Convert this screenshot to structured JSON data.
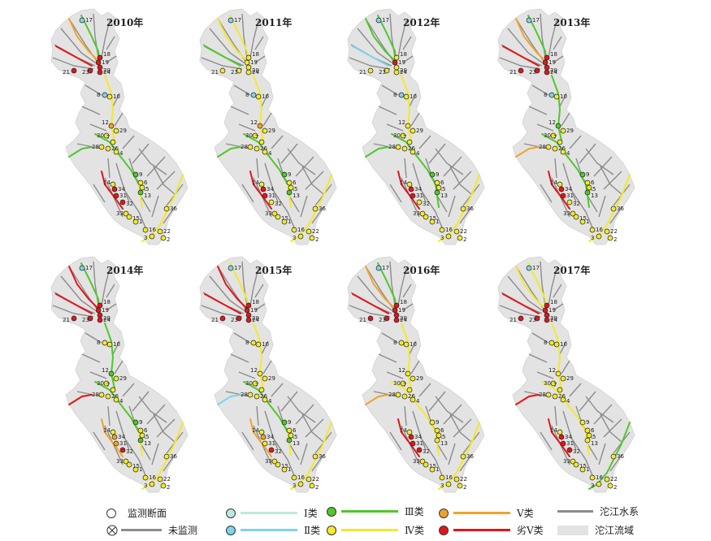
{
  "years": [
    "2010年",
    "2011年",
    "2012年",
    "2013年",
    "2014年",
    "2015年",
    "2016年",
    "2017年"
  ],
  "station_labels": {
    "s17": "17",
    "s18": "18",
    "s19": "19",
    "s20": "20",
    "s21": "21",
    "s23": "23",
    "s24": "24",
    "s8": "8",
    "s10": "10",
    "s12": "12",
    "s29": "29",
    "s30": "30",
    "s7": "7",
    "s28": "28",
    "s26": "26",
    "s4": "4",
    "s9": "9",
    "s6": "6",
    "s5": "5",
    "s13": "13",
    "s14": "14",
    "s31": "31",
    "s32": "32",
    "s34": "34",
    "s33": "33",
    "s15": "15",
    "s36": "36",
    "s16": "16",
    "s22": "22",
    "s2": "2",
    "s3": "3",
    "s1": "1"
  },
  "colors": {
    "I": "#bde9df",
    "II": "#7fd3ea",
    "III": "#4fc829",
    "IV": "#f2ea2a",
    "V": "#f0a32b",
    "VI": "#e1161b",
    "river": "#8c8c8c",
    "basin": "#e3e3e3",
    "none": "#ffffff"
  },
  "panels": [
    {
      "year_index": 0,
      "reaches": {
        "north": "V",
        "west": "VI",
        "mid": "IV",
        "branch": "III",
        "lower": "IV",
        "swbranch": "VI",
        "se": "IV",
        "wbranch": "III",
        "top": "III"
      },
      "stations": {
        "s17": "II",
        "s19": "VI",
        "s8": "II",
        "s12": "V",
        "s31": "VI",
        "s32": "VI",
        "s34": "VI",
        "s15": "IV",
        "s36": "IV",
        "s9": "III",
        "s13": "III"
      }
    },
    {
      "year_index": 1,
      "reaches": {
        "north": "IV",
        "west": "III",
        "mid": "IV",
        "branch": "III",
        "lower": "IV",
        "swbranch": "VI",
        "se": "IV",
        "wbranch": "III",
        "top": "IV"
      },
      "stations": {
        "s17": "II",
        "s19": "IV",
        "s8": "II",
        "s12": "V",
        "s31": "VI",
        "s32": "IV",
        "s34": "VI",
        "s15": "IV",
        "s36": "IV",
        "s9": "III",
        "s13": "III"
      }
    },
    {
      "year_index": 2,
      "reaches": {
        "north": "III",
        "west": "II",
        "mid": "IV",
        "branch": "III",
        "lower": "III",
        "swbranch": "VI",
        "se": "IV",
        "wbranch": "III",
        "top": "III"
      },
      "stations": {
        "s17": "II",
        "s19": "VI",
        "s8": "II",
        "s12": "IV",
        "s31": "VI",
        "s32": "IV",
        "s34": "VI",
        "s15": "IV",
        "s36": "IV",
        "s9": "III",
        "s13": "III"
      }
    },
    {
      "year_index": 3,
      "reaches": {
        "north": "V",
        "west": "VI",
        "mid": "III",
        "branch": "III",
        "lower": "III",
        "swbranch": "VI",
        "se": "IV",
        "wbranch": "V",
        "top": "III"
      },
      "stations": {
        "s17": "II",
        "s19": "VI",
        "s8": "II",
        "s12": "III",
        "s31": "VI",
        "s32": "IV",
        "s34": "VI",
        "s15": "IV",
        "s36": "IV",
        "s9": "III",
        "s13": "III"
      }
    },
    {
      "year_index": 4,
      "reaches": {
        "north": "VI",
        "west": "VI",
        "mid": "III",
        "branch": "III",
        "lower": "IV",
        "swbranch": "V",
        "se": "IV",
        "wbranch": "VI",
        "top": "III"
      },
      "stations": {
        "s17": "II",
        "s19": "VI",
        "s8": "IV",
        "s12": "III",
        "s31": "V",
        "s32": "VI",
        "s34": "V",
        "s15": "IV",
        "s36": "IV",
        "s9": "III",
        "s13": "III"
      }
    },
    {
      "year_index": 5,
      "reaches": {
        "north": "VI",
        "west": "VI",
        "mid": "IV",
        "branch": "III",
        "lower": "IV",
        "swbranch": "V",
        "se": "IV",
        "wbranch": "II",
        "top": "IV"
      },
      "stations": {
        "s17": "II",
        "s19": "VI",
        "s8": "IV",
        "s12": "IV",
        "s31": "IV",
        "s32": "VI",
        "s34": "V",
        "s15": "IV",
        "s36": "IV",
        "s9": "III",
        "s13": "III"
      }
    },
    {
      "year_index": 6,
      "reaches": {
        "north": "V",
        "west": "VI",
        "mid": "IV",
        "branch": "IV",
        "lower": "IV",
        "swbranch": "VI",
        "se": "IV",
        "wbranch": "V",
        "top": "III"
      },
      "stations": {
        "s17": "II",
        "s19": "VI",
        "s8": "IV",
        "s12": "IV",
        "s31": "VI",
        "s32": "VI",
        "s34": "VI",
        "s15": "IV",
        "s36": "IV",
        "s9": "IV",
        "s13": "IV"
      }
    },
    {
      "year_index": 7,
      "reaches": {
        "north": "IV",
        "west": "VI",
        "mid": "IV",
        "branch": "IV",
        "lower": "IV",
        "swbranch": "VI",
        "se": "III",
        "wbranch": "VI",
        "top": "IV"
      },
      "stations": {
        "s17": "II",
        "s19": "VI",
        "s8": "IV",
        "s12": "IV",
        "s31": "VI",
        "s32": "VI",
        "s34": "VI",
        "s15": "IV",
        "s36": "IV",
        "s9": "IV",
        "s13": "IV"
      }
    }
  ],
  "legend": {
    "monitor": "监测断面",
    "unmonitored": "未监测",
    "class_I": "Ⅰ类",
    "class_II": "Ⅱ类",
    "class_III": "Ⅲ类",
    "class_IV": "Ⅳ类",
    "class_V": "Ⅴ类",
    "class_VI": "劣Ⅴ类",
    "river": "沱江水系",
    "basin": "沱江流域"
  }
}
